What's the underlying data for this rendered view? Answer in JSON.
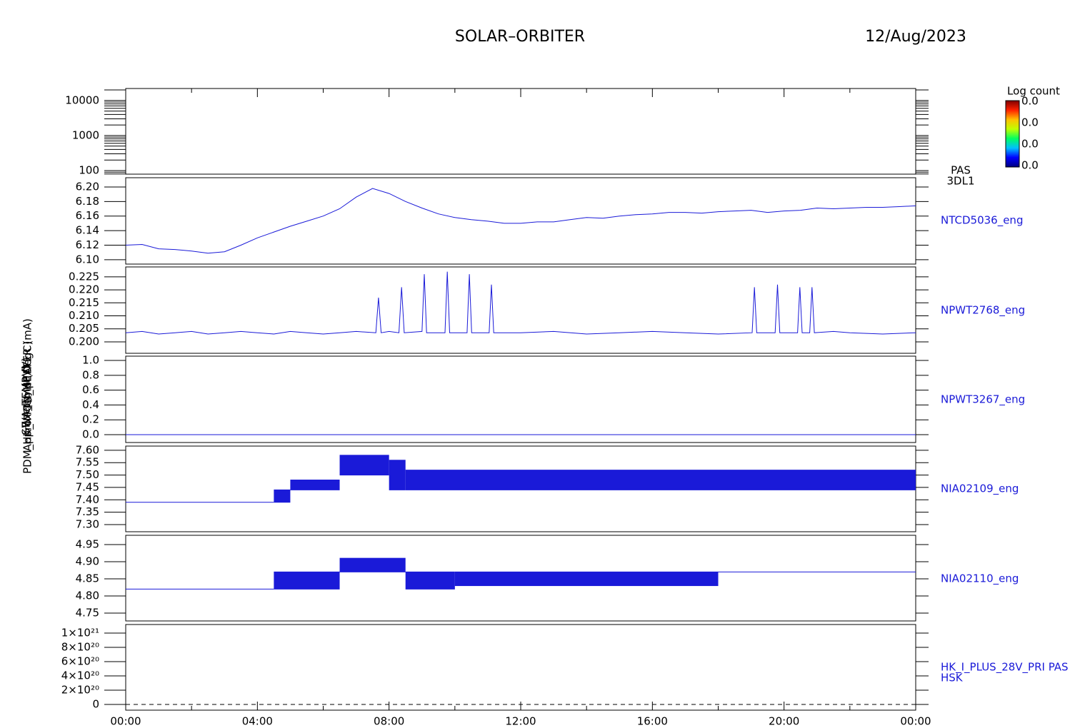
{
  "page": {
    "title": "SOLAR–ORBITER",
    "date": "12/Aug/2023",
    "ylabels": [
      "Energy (eV)",
      "Approx Temp (DegC)",
      "SWA_TEMP (V)",
      "PDM_HK_IMON_HEATER (mA)"
    ],
    "xlim": [
      0,
      24
    ],
    "xticks": [
      {
        "value": 0,
        "label": "00:00"
      },
      {
        "value": 4,
        "label": "04:00"
      },
      {
        "value": 8,
        "label": "08:00"
      },
      {
        "value": 12,
        "label": "12:00"
      },
      {
        "value": 16,
        "label": "16:00"
      },
      {
        "value": 20,
        "label": "20:00"
      },
      {
        "value": 24,
        "label": "00:00"
      }
    ],
    "xminorticks": [
      2,
      6,
      10,
      14,
      18,
      22
    ],
    "colorbar": {
      "title": "Log count",
      "ticks": [
        "0.0",
        "0.0",
        "0.0",
        "0.0"
      ],
      "colors": [
        "#000080",
        "#0000ff",
        "#00c0ff",
        "#00ff60",
        "#c0ff00",
        "#ffc000",
        "#ff2000",
        "#800000"
      ]
    }
  },
  "chart_data": [
    {
      "type": "spectrogram",
      "label": [
        "PAS",
        "3DL1"
      ],
      "log": true,
      "ylim": [
        79,
        22000
      ],
      "yticks": [
        100,
        1000,
        10000
      ]
    },
    {
      "type": "line",
      "label": [
        "NTCD5036_eng"
      ],
      "color": "#1a1ad8",
      "ylim": [
        6.094,
        6.2127
      ],
      "yticks": [
        {
          "value": 6.1,
          "label": "6.10"
        },
        {
          "value": 6.12,
          "label": "6.12"
        },
        {
          "value": 6.14,
          "label": "6.14"
        },
        {
          "value": 6.16,
          "label": "6.16"
        },
        {
          "value": 6.18,
          "label": "6.18"
        },
        {
          "value": 6.2,
          "label": "6.20"
        }
      ],
      "x": [
        0,
        0.5,
        1,
        1.5,
        2,
        2.5,
        3,
        3.5,
        4,
        4.5,
        5,
        5.5,
        6,
        6.5,
        7,
        7.5,
        8,
        8.5,
        9,
        9.5,
        10,
        10.5,
        11,
        11.5,
        12,
        12.5,
        13,
        13.5,
        14,
        14.5,
        15,
        15.5,
        16,
        16.5,
        17,
        17.5,
        18,
        18.5,
        19,
        19.5,
        20,
        20.5,
        21,
        21.5,
        22,
        22.5,
        23,
        23.5,
        24
      ],
      "values": [
        6.12,
        6.121,
        6.115,
        6.114,
        6.112,
        6.109,
        6.111,
        6.12,
        6.13,
        6.138,
        6.146,
        6.153,
        6.16,
        6.17,
        6.186,
        6.198,
        6.191,
        6.18,
        6.171,
        6.163,
        6.158,
        6.155,
        6.153,
        6.15,
        6.15,
        6.152,
        6.152,
        6.155,
        6.158,
        6.157,
        6.16,
        6.162,
        6.163,
        6.165,
        6.165,
        6.164,
        6.166,
        6.167,
        6.168,
        6.165,
        6.167,
        6.168,
        6.171,
        6.17,
        6.171,
        6.172,
        6.172,
        6.173,
        6.174
      ]
    },
    {
      "type": "line",
      "label": [
        "NPWT2768_eng"
      ],
      "color": "#1a1ad8",
      "ylim": [
        0.1956,
        0.2288
      ],
      "yticks": [
        {
          "value": 0.2,
          "label": "0.200"
        },
        {
          "value": 0.205,
          "label": "0.205"
        },
        {
          "value": 0.21,
          "label": "0.210"
        },
        {
          "value": 0.215,
          "label": "0.215"
        },
        {
          "value": 0.22,
          "label": "0.220"
        },
        {
          "value": 0.225,
          "label": "0.225"
        }
      ],
      "x": [
        0,
        0.5,
        1,
        1.5,
        2,
        2.5,
        3,
        3.5,
        4,
        4.5,
        5,
        5.5,
        6,
        6.5,
        7,
        7.6,
        7.68,
        7.76,
        8,
        8.3,
        8.38,
        8.46,
        9,
        9.07,
        9.14,
        9.7,
        9.77,
        9.84,
        10.37,
        10.44,
        10.51,
        11.04,
        11.11,
        11.18,
        12,
        13,
        14,
        15,
        16,
        17,
        18,
        19.03,
        19.1,
        19.17,
        19.73,
        19.8,
        19.87,
        20.41,
        20.48,
        20.55,
        20.78,
        20.85,
        20.92,
        21.5,
        22,
        23,
        24
      ],
      "values": [
        0.2035,
        0.204,
        0.203,
        0.2035,
        0.204,
        0.203,
        0.2035,
        0.204,
        0.2035,
        0.203,
        0.204,
        0.2035,
        0.203,
        0.2035,
        0.204,
        0.2035,
        0.217,
        0.2035,
        0.204,
        0.2035,
        0.221,
        0.2035,
        0.204,
        0.226,
        0.2035,
        0.2035,
        0.227,
        0.2035,
        0.2035,
        0.226,
        0.2035,
        0.2035,
        0.222,
        0.2035,
        0.2035,
        0.204,
        0.203,
        0.2035,
        0.204,
        0.2035,
        0.203,
        0.2035,
        0.221,
        0.2035,
        0.2035,
        0.222,
        0.2035,
        0.2035,
        0.221,
        0.2035,
        0.2035,
        0.221,
        0.2035,
        0.204,
        0.2035,
        0.203,
        0.2035
      ]
    },
    {
      "type": "line",
      "label": [
        "NPWT3267_eng"
      ],
      "color": "#1a1ad8",
      "ylim": [
        -0.106,
        1.058
      ],
      "yticks": [
        {
          "value": 0,
          "label": "0.0"
        },
        {
          "value": 0.2,
          "label": "0.2"
        },
        {
          "value": 0.4,
          "label": "0.4"
        },
        {
          "value": 0.6,
          "label": "0.6"
        },
        {
          "value": 0.8,
          "label": "0.8"
        },
        {
          "value": 1,
          "label": "1.0"
        }
      ],
      "x": [
        0,
        24
      ],
      "values": [
        0,
        0
      ]
    },
    {
      "type": "range",
      "label": [
        "NIA02109_eng"
      ],
      "color": "#1a1ad8",
      "ylim": [
        7.271,
        7.617
      ],
      "yticks": [
        {
          "value": 7.3,
          "label": "7.30"
        },
        {
          "value": 7.35,
          "label": "7.35"
        },
        {
          "value": 7.4,
          "label": "7.40"
        },
        {
          "value": 7.45,
          "label": "7.45"
        },
        {
          "value": 7.5,
          "label": "7.50"
        },
        {
          "value": 7.55,
          "label": "7.55"
        },
        {
          "value": 7.6,
          "label": "7.60"
        }
      ],
      "bins": [
        0,
        4.5,
        5,
        6.5,
        8,
        8.5,
        24
      ],
      "lows": [
        7.39,
        7.39,
        7.44,
        7.5,
        7.44,
        7.44
      ],
      "highs": [
        7.39,
        7.44,
        7.48,
        7.58,
        7.56,
        7.52
      ]
    },
    {
      "type": "range",
      "label": [
        "NIA02110_eng"
      ],
      "color": "#1a1ad8",
      "ylim": [
        4.727,
        4.977
      ],
      "yticks": [
        {
          "value": 4.75,
          "label": "4.75"
        },
        {
          "value": 4.8,
          "label": "4.80"
        },
        {
          "value": 4.85,
          "label": "4.85"
        },
        {
          "value": 4.9,
          "label": "4.90"
        },
        {
          "value": 4.95,
          "label": "4.95"
        }
      ],
      "bins": [
        0,
        4.5,
        6.5,
        8.5,
        10,
        18,
        24
      ],
      "lows": [
        4.82,
        4.82,
        4.87,
        4.82,
        4.83,
        4.87
      ],
      "highs": [
        4.82,
        4.87,
        4.91,
        4.87,
        4.87,
        4.87
      ]
    },
    {
      "type": "line",
      "label": [
        "HK_I_PLUS_28V_PRI PAS",
        "HSK"
      ],
      "color": "#000000",
      "dashed": true,
      "ylim": [
        -8e+19,
        1.12e+21
      ],
      "yticks": [
        0,
        {
          "value": 2e+20,
          "label": "2×10²⁰"
        },
        {
          "value": 4e+20,
          "label": "4×10²⁰"
        },
        {
          "value": 6e+20,
          "label": "6×10²⁰"
        },
        {
          "value": 8e+20,
          "label": "8×10²⁰"
        },
        {
          "value": 1e+21,
          "label": "1×10²¹"
        }
      ],
      "x": [
        0,
        24
      ],
      "values": [
        0,
        0
      ]
    }
  ]
}
